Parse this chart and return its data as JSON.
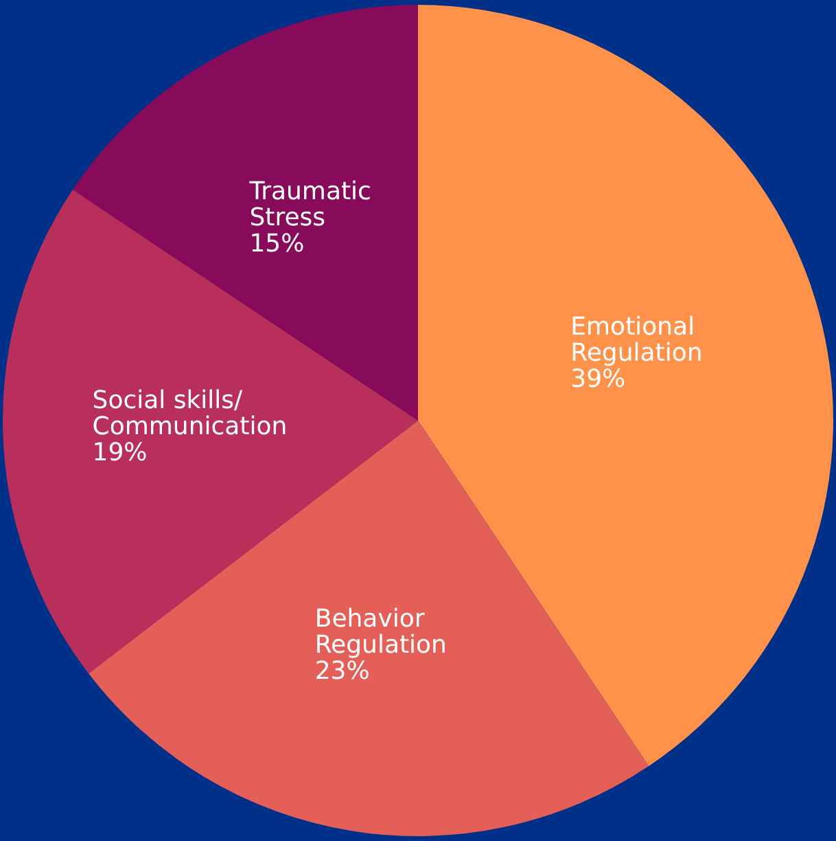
{
  "chart_data": {
    "type": "pie",
    "categories": [
      "Emotional Regulation",
      "Behavior Regulation",
      "Social skills/ Communication",
      "Traumatic Stress"
    ],
    "values": [
      39,
      23,
      19,
      15
    ],
    "colors": [
      "#ff924a",
      "#e35f58",
      "#b82f5c",
      "#870b5a"
    ],
    "value_labels": [
      "39%",
      "23%",
      "19%",
      "15%"
    ],
    "legend": false
  }
}
